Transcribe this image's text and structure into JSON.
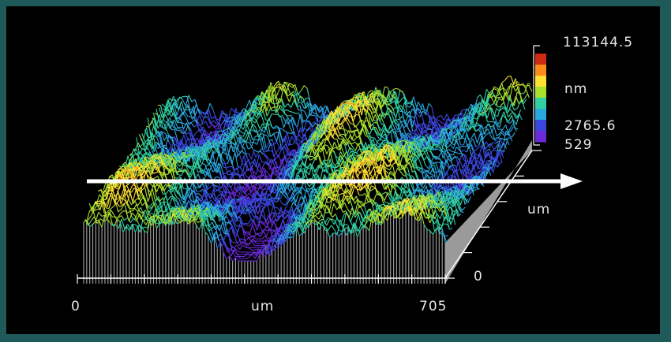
{
  "colorbar": {
    "max_label": "113144.5",
    "unit_label": "nm",
    "min_label_line1": "2765.6",
    "min_label_line2": "529",
    "colors_top_to_bottom": [
      "#d12a12",
      "#ff8c1a",
      "#ffe033",
      "#a8e030",
      "#30d0a0",
      "#2aa8e0",
      "#3a48e0",
      "#6a2ad8"
    ]
  },
  "x_axis": {
    "start_label": "0",
    "unit_label": "um",
    "end_label": "705"
  },
  "y_axis": {
    "unit_label": "um",
    "zero_label": "0"
  },
  "colors": {
    "background": "#000000",
    "frame": "#1f5a5a",
    "wall": "#9a9a9a",
    "arrow": "#ffffff",
    "text": "#e6e6e6"
  }
}
